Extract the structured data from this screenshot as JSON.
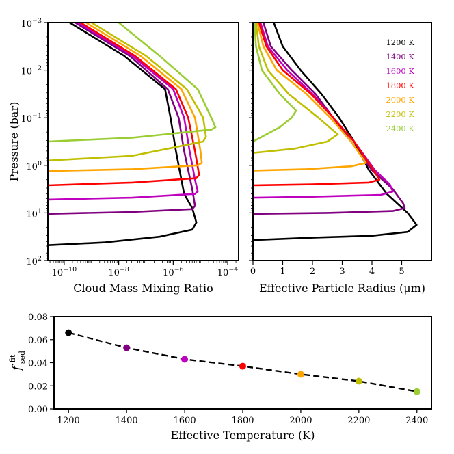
{
  "chart_data": [
    {
      "type": "line",
      "panel": "mixing-ratio",
      "xlabel": "Cloud Mass Mixing Ratio",
      "ylabel": "Pressure (bar)",
      "xscale": "log",
      "yscale": "log",
      "xlim_log10": [
        -10.6,
        -3.6
      ],
      "ylim_log10_bar": [
        -3,
        2
      ],
      "y_inverted": true,
      "xticks": [
        {
          "log": -10,
          "base": "10",
          "exp": "−10"
        },
        {
          "log": -8,
          "base": "10",
          "exp": "−8"
        },
        {
          "log": -6,
          "base": "10",
          "exp": "−6"
        },
        {
          "log": -4,
          "base": "10",
          "exp": "−4"
        }
      ],
      "yticks": [
        {
          "log": -3,
          "base": "10",
          "exp": "−3"
        },
        {
          "log": -2,
          "base": "10",
          "exp": "−2"
        },
        {
          "log": -1,
          "base": "10",
          "exp": "−1"
        },
        {
          "log": 0,
          "base": "10",
          "exp": "0"
        },
        {
          "log": 1,
          "base": "10",
          "exp": "1"
        },
        {
          "log": 2,
          "base": "10",
          "exp": "2"
        }
      ],
      "series": [
        {
          "name": "1200 K",
          "color": "#000000",
          "points": [
            [
              -9.8,
              -3
            ],
            [
              -7.8,
              -2.3
            ],
            [
              -6.3,
              -1.6
            ],
            [
              -6.1,
              -1.0
            ],
            [
              -5.9,
              -0.3
            ],
            [
              -5.6,
              0.6
            ],
            [
              -5.3,
              0.9
            ],
            [
              -5.15,
              1.2
            ],
            [
              -5.3,
              1.35
            ],
            [
              -6.5,
              1.5
            ],
            [
              -8.5,
              1.62
            ],
            [
              -10.6,
              1.68
            ]
          ]
        },
        {
          "name": "1400 K",
          "color": "#800080",
          "points": [
            [
              -9.6,
              -3
            ],
            [
              -7.6,
              -2.3
            ],
            [
              -6.2,
              -1.6
            ],
            [
              -5.8,
              -1.0
            ],
            [
              -5.6,
              -0.3
            ],
            [
              -5.3,
              0.5
            ],
            [
              -5.2,
              0.85
            ],
            [
              -5.3,
              0.92
            ],
            [
              -7.5,
              0.98
            ],
            [
              -10.6,
              1.02
            ]
          ]
        },
        {
          "name": "1600 K",
          "color": "#bf00bf",
          "points": [
            [
              -9.5,
              -3
            ],
            [
              -7.5,
              -2.3
            ],
            [
              -6.0,
              -1.6
            ],
            [
              -5.6,
              -1.0
            ],
            [
              -5.4,
              -0.3
            ],
            [
              -5.2,
              0.3
            ],
            [
              -5.1,
              0.55
            ],
            [
              -5.2,
              0.6
            ],
            [
              -7.5,
              0.68
            ],
            [
              -10.6,
              0.72
            ]
          ]
        },
        {
          "name": "1800 K",
          "color": "#ff0000",
          "points": [
            [
              -9.4,
              -3
            ],
            [
              -7.4,
              -2.3
            ],
            [
              -5.9,
              -1.6
            ],
            [
              -5.45,
              -1.0
            ],
            [
              -5.2,
              -0.3
            ],
            [
              -5.05,
              0.2
            ],
            [
              -5.15,
              0.27
            ],
            [
              -7.5,
              0.36
            ],
            [
              -10.6,
              0.42
            ]
          ]
        },
        {
          "name": "2000 K",
          "color": "#ffa500",
          "points": [
            [
              -9.2,
              -3
            ],
            [
              -7.2,
              -2.3
            ],
            [
              -5.7,
              -1.6
            ],
            [
              -5.2,
              -1.0
            ],
            [
              -5.0,
              -0.3
            ],
            [
              -4.95,
              -0.05
            ],
            [
              -5.1,
              0.0
            ],
            [
              -7.5,
              0.08
            ],
            [
              -10.6,
              0.12
            ]
          ]
        },
        {
          "name": "2200 K",
          "color": "#bfbf00",
          "points": [
            [
              -9.0,
              -3
            ],
            [
              -7.0,
              -2.3
            ],
            [
              -5.5,
              -1.6
            ],
            [
              -4.9,
              -1.0
            ],
            [
              -4.8,
              -0.6
            ],
            [
              -4.9,
              -0.5
            ],
            [
              -7.5,
              -0.2
            ],
            [
              -10.6,
              -0.1
            ]
          ]
        },
        {
          "name": "2400 K",
          "color": "#9acd32",
          "points": [
            [
              -8.0,
              -3
            ],
            [
              -6.5,
              -2.3
            ],
            [
              -5.1,
              -1.6
            ],
            [
              -4.6,
              -1.0
            ],
            [
              -4.45,
              -0.8
            ],
            [
              -4.6,
              -0.75
            ],
            [
              -7.5,
              -0.58
            ],
            [
              -10.6,
              -0.5
            ]
          ]
        }
      ]
    },
    {
      "type": "line",
      "panel": "particle-radius",
      "xlabel": "Effective Particle Radius (μm)",
      "yscale": "log",
      "xlim": [
        0,
        6
      ],
      "ylim_log10_bar": [
        -3,
        2
      ],
      "y_inverted": true,
      "xticks": [
        0,
        1,
        2,
        3,
        4,
        5
      ],
      "legend": [
        "1200 K",
        "1400 K",
        "1600 K",
        "1800 K",
        "2000 K",
        "2200 K",
        "2400 K"
      ],
      "legend_position": "top-right",
      "series": [
        {
          "name": "1200 K",
          "color": "#000000",
          "points": [
            [
              0.7,
              -3
            ],
            [
              1.0,
              -2.5
            ],
            [
              1.6,
              -2.0
            ],
            [
              2.3,
              -1.5
            ],
            [
              2.9,
              -1.0
            ],
            [
              3.4,
              -0.5
            ],
            [
              3.9,
              0.1
            ],
            [
              4.5,
              0.6
            ],
            [
              5.2,
              1.0
            ],
            [
              5.5,
              1.25
            ],
            [
              5.2,
              1.4
            ],
            [
              4.0,
              1.48
            ],
            [
              2.0,
              1.52
            ],
            [
              0,
              1.57
            ]
          ]
        },
        {
          "name": "1400 K",
          "color": "#800080",
          "points": [
            [
              0.35,
              -3
            ],
            [
              0.6,
              -2.5
            ],
            [
              1.3,
              -2.0
            ],
            [
              2.1,
              -1.5
            ],
            [
              2.7,
              -1.0
            ],
            [
              3.3,
              -0.5
            ],
            [
              4.0,
              0.1
            ],
            [
              4.7,
              0.5
            ],
            [
              5.05,
              0.8
            ],
            [
              5.1,
              0.9
            ],
            [
              4.7,
              0.96
            ],
            [
              2.5,
              1.0
            ],
            [
              0,
              1.02
            ]
          ]
        },
        {
          "name": "1600 K",
          "color": "#bf00bf",
          "points": [
            [
              0.25,
              -3
            ],
            [
              0.5,
              -2.5
            ],
            [
              1.15,
              -2.0
            ],
            [
              2.0,
              -1.5
            ],
            [
              2.7,
              -1.0
            ],
            [
              3.4,
              -0.5
            ],
            [
              4.1,
              0.1
            ],
            [
              4.6,
              0.4
            ],
            [
              4.7,
              0.55
            ],
            [
              4.3,
              0.62
            ],
            [
              2.0,
              0.66
            ],
            [
              0,
              0.68
            ]
          ]
        },
        {
          "name": "1800 K",
          "color": "#ff0000",
          "points": [
            [
              0.2,
              -3
            ],
            [
              0.45,
              -2.5
            ],
            [
              1.0,
              -2.0
            ],
            [
              1.95,
              -1.5
            ],
            [
              2.7,
              -1.0
            ],
            [
              3.4,
              -0.5
            ],
            [
              4.0,
              0.05
            ],
            [
              4.25,
              0.3
            ],
            [
              3.9,
              0.36
            ],
            [
              2.0,
              0.4
            ],
            [
              0,
              0.42
            ]
          ]
        },
        {
          "name": "2000 K",
          "color": "#ffa500",
          "points": [
            [
              0.15,
              -3
            ],
            [
              0.35,
              -2.5
            ],
            [
              0.8,
              -2.0
            ],
            [
              1.8,
              -1.5
            ],
            [
              2.6,
              -1.0
            ],
            [
              3.3,
              -0.5
            ],
            [
              3.8,
              -0.05
            ],
            [
              3.3,
              0.02
            ],
            [
              1.8,
              0.08
            ],
            [
              0,
              0.11
            ]
          ]
        },
        {
          "name": "2200 K",
          "color": "#bfbf00",
          "points": [
            [
              0.1,
              -3
            ],
            [
              0.2,
              -2.5
            ],
            [
              0.5,
              -2.0
            ],
            [
              1.2,
              -1.5
            ],
            [
              2.2,
              -1.0
            ],
            [
              2.85,
              -0.65
            ],
            [
              2.5,
              -0.5
            ],
            [
              1.4,
              -0.35
            ],
            [
              0,
              -0.26
            ]
          ]
        },
        {
          "name": "2400 K",
          "color": "#9acd32",
          "points": [
            [
              0.05,
              -3
            ],
            [
              0.1,
              -2.5
            ],
            [
              0.3,
              -2.0
            ],
            [
              0.9,
              -1.5
            ],
            [
              1.45,
              -1.15
            ],
            [
              1.3,
              -1.0
            ],
            [
              0.9,
              -0.8
            ],
            [
              0,
              -0.5
            ]
          ]
        }
      ]
    },
    {
      "type": "line",
      "panel": "fsed",
      "xlabel": "Effective Temperature (K)",
      "ylabel_main": "f",
      "ylabel_sup": "fit",
      "ylabel_sub": "sed",
      "xlim": [
        1150,
        2450
      ],
      "ylim": [
        0.0,
        0.08
      ],
      "xticks": [
        1200,
        1400,
        1600,
        1800,
        2000,
        2200,
        2400
      ],
      "yticks": [
        "0.00",
        "0.02",
        "0.04",
        "0.06",
        "0.08"
      ],
      "yticks_values": [
        0.0,
        0.02,
        0.04,
        0.06,
        0.08
      ],
      "line_style": "dashed",
      "line_color": "#000000",
      "x": [
        1200,
        1400,
        1600,
        1800,
        2000,
        2200,
        2400
      ],
      "y": [
        0.066,
        0.053,
        0.043,
        0.037,
        0.03,
        0.024,
        0.015
      ],
      "point_colors": [
        "#000000",
        "#800080",
        "#bf00bf",
        "#ff0000",
        "#ffa500",
        "#bfbf00",
        "#9acd32"
      ]
    }
  ]
}
